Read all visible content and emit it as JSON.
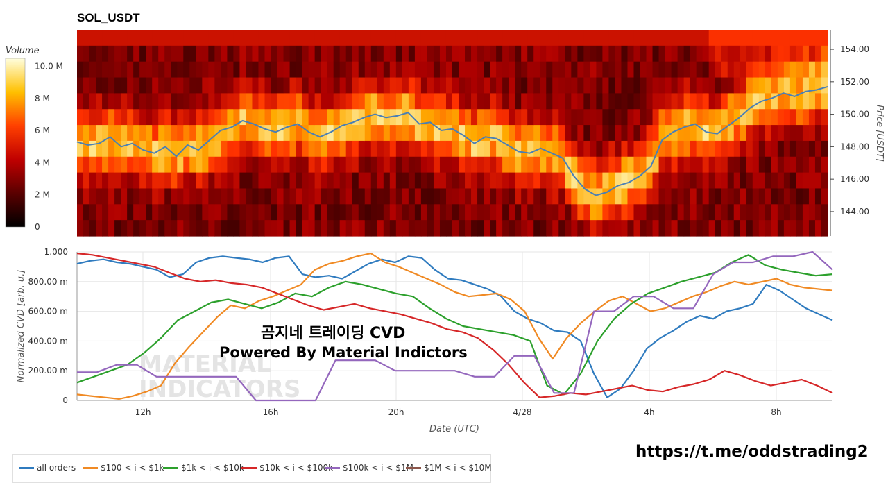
{
  "title": "SOL_USDT",
  "chart_data": [
    {
      "type": "heatmap",
      "title": "SOL_USDT",
      "ylabel": "Price [USDT]",
      "ylim": [
        142.5,
        155.2
      ],
      "yticks": [
        "144.00",
        "146.00",
        "148.00",
        "150.00",
        "152.00",
        "154.00"
      ],
      "colorbar": {
        "title": "Volume",
        "range": [
          0,
          10.5
        ],
        "ticks": [
          "0",
          "2 M",
          "4 M",
          "6 M",
          "8 M",
          "10.0 M"
        ]
      },
      "price_series": {
        "name": "price",
        "color": "#4a7fb5",
        "values": [
          148.3,
          148.1,
          148.2,
          148.6,
          148.0,
          148.2,
          147.8,
          147.6,
          148.0,
          147.4,
          148.1,
          147.8,
          148.4,
          149.0,
          149.2,
          149.6,
          149.4,
          149.1,
          148.9,
          149.2,
          149.4,
          148.9,
          148.6,
          148.9,
          149.3,
          149.5,
          149.8,
          150.0,
          149.8,
          149.9,
          150.1,
          149.4,
          149.5,
          149.0,
          149.1,
          148.7,
          148.2,
          148.6,
          148.5,
          148.1,
          147.7,
          147.6,
          147.9,
          147.6,
          147.3,
          146.2,
          145.4,
          145.0,
          145.2,
          145.6,
          145.8,
          146.2,
          146.8,
          148.4,
          148.9,
          149.2,
          149.4,
          148.9,
          148.8,
          149.3,
          149.8,
          150.4,
          150.8,
          151.0,
          151.3,
          151.1,
          151.4,
          151.5,
          151.7
        ]
      }
    },
    {
      "type": "line",
      "xlabel": "Date (UTC)",
      "ylabel": "Normalized CVD [arb. u.]",
      "ylim": [
        0,
        1.0
      ],
      "xticks": [
        "12h",
        "16h",
        "20h",
        "4/28",
        "4h",
        "8h"
      ],
      "yticks": [
        "0",
        "200.00 m",
        "400.00 m",
        "600.00 m",
        "800.00 m",
        "1.000"
      ],
      "series": [
        {
          "name": "all orders",
          "color": "#2f7bbf",
          "values": [
            0.92,
            0.94,
            0.95,
            0.93,
            0.92,
            0.9,
            0.88,
            0.83,
            0.85,
            0.93,
            0.96,
            0.97,
            0.96,
            0.95,
            0.93,
            0.96,
            0.97,
            0.85,
            0.83,
            0.84,
            0.82,
            0.87,
            0.92,
            0.95,
            0.93,
            0.97,
            0.96,
            0.88,
            0.82,
            0.81,
            0.78,
            0.75,
            0.7,
            0.6,
            0.55,
            0.52,
            0.47,
            0.46,
            0.4,
            0.18,
            0.02,
            0.08,
            0.2,
            0.35,
            0.42,
            0.47,
            0.53,
            0.57,
            0.55,
            0.6,
            0.62,
            0.65,
            0.78,
            0.74,
            0.68,
            0.62,
            0.58,
            0.54
          ]
        },
        {
          "name": "$100 < i < $1k",
          "color": "#f08a24",
          "values": [
            0.04,
            0.03,
            0.02,
            0.01,
            0.03,
            0.06,
            0.1,
            0.25,
            0.36,
            0.46,
            0.56,
            0.64,
            0.62,
            0.67,
            0.7,
            0.74,
            0.78,
            0.88,
            0.92,
            0.94,
            0.97,
            0.99,
            0.93,
            0.9,
            0.86,
            0.82,
            0.78,
            0.73,
            0.7,
            0.71,
            0.72,
            0.68,
            0.6,
            0.42,
            0.28,
            0.42,
            0.52,
            0.6,
            0.67,
            0.7,
            0.65,
            0.6,
            0.62,
            0.66,
            0.7,
            0.73,
            0.77,
            0.8,
            0.78,
            0.8,
            0.82,
            0.78,
            0.76,
            0.75,
            0.74
          ]
        },
        {
          "name": "$1k < i < $10k",
          "color": "#2ca02c",
          "values": [
            0.12,
            0.16,
            0.2,
            0.24,
            0.32,
            0.42,
            0.54,
            0.6,
            0.66,
            0.68,
            0.65,
            0.62,
            0.66,
            0.72,
            0.7,
            0.76,
            0.8,
            0.78,
            0.75,
            0.72,
            0.7,
            0.62,
            0.55,
            0.5,
            0.48,
            0.46,
            0.44,
            0.4,
            0.1,
            0.04,
            0.18,
            0.4,
            0.55,
            0.65,
            0.72,
            0.76,
            0.8,
            0.83,
            0.86,
            0.93,
            0.98,
            0.91,
            0.88,
            0.86,
            0.84,
            0.85
          ]
        },
        {
          "name": "$10k < i < $100k",
          "color": "#d62728",
          "values": [
            0.99,
            0.98,
            0.96,
            0.94,
            0.92,
            0.9,
            0.86,
            0.82,
            0.8,
            0.81,
            0.79,
            0.78,
            0.76,
            0.72,
            0.68,
            0.64,
            0.61,
            0.63,
            0.65,
            0.62,
            0.6,
            0.58,
            0.55,
            0.52,
            0.48,
            0.46,
            0.42,
            0.34,
            0.24,
            0.12,
            0.02,
            0.03,
            0.05,
            0.04,
            0.06,
            0.08,
            0.1,
            0.07,
            0.06,
            0.09,
            0.11,
            0.14,
            0.2,
            0.17,
            0.13,
            0.1,
            0.12,
            0.14,
            0.1,
            0.05
          ]
        },
        {
          "name": "$100k < i < $1M",
          "color": "#9467bd",
          "values": [
            0.19,
            0.19,
            0.24,
            0.24,
            0.16,
            0.16,
            0.16,
            0.16,
            0.16,
            0.0,
            0.0,
            0.0,
            0.0,
            0.27,
            0.27,
            0.27,
            0.2,
            0.2,
            0.2,
            0.2,
            0.16,
            0.16,
            0.3,
            0.3,
            0.05,
            0.05,
            0.6,
            0.6,
            0.7,
            0.7,
            0.62,
            0.62,
            0.85,
            0.93,
            0.93,
            0.97,
            0.97,
            1.0,
            0.88
          ]
        },
        {
          "name": "$1M < i < $10M",
          "color": "#8c564b",
          "values": []
        }
      ]
    }
  ],
  "watermark": {
    "line1": "MATERIAL",
    "line2": "INDICATORS"
  },
  "overlay": {
    "line1": "곰지네 트레이딩 CVD",
    "line2": "Powered By Material Indictors"
  },
  "url": "https://t.me/oddstrading2"
}
